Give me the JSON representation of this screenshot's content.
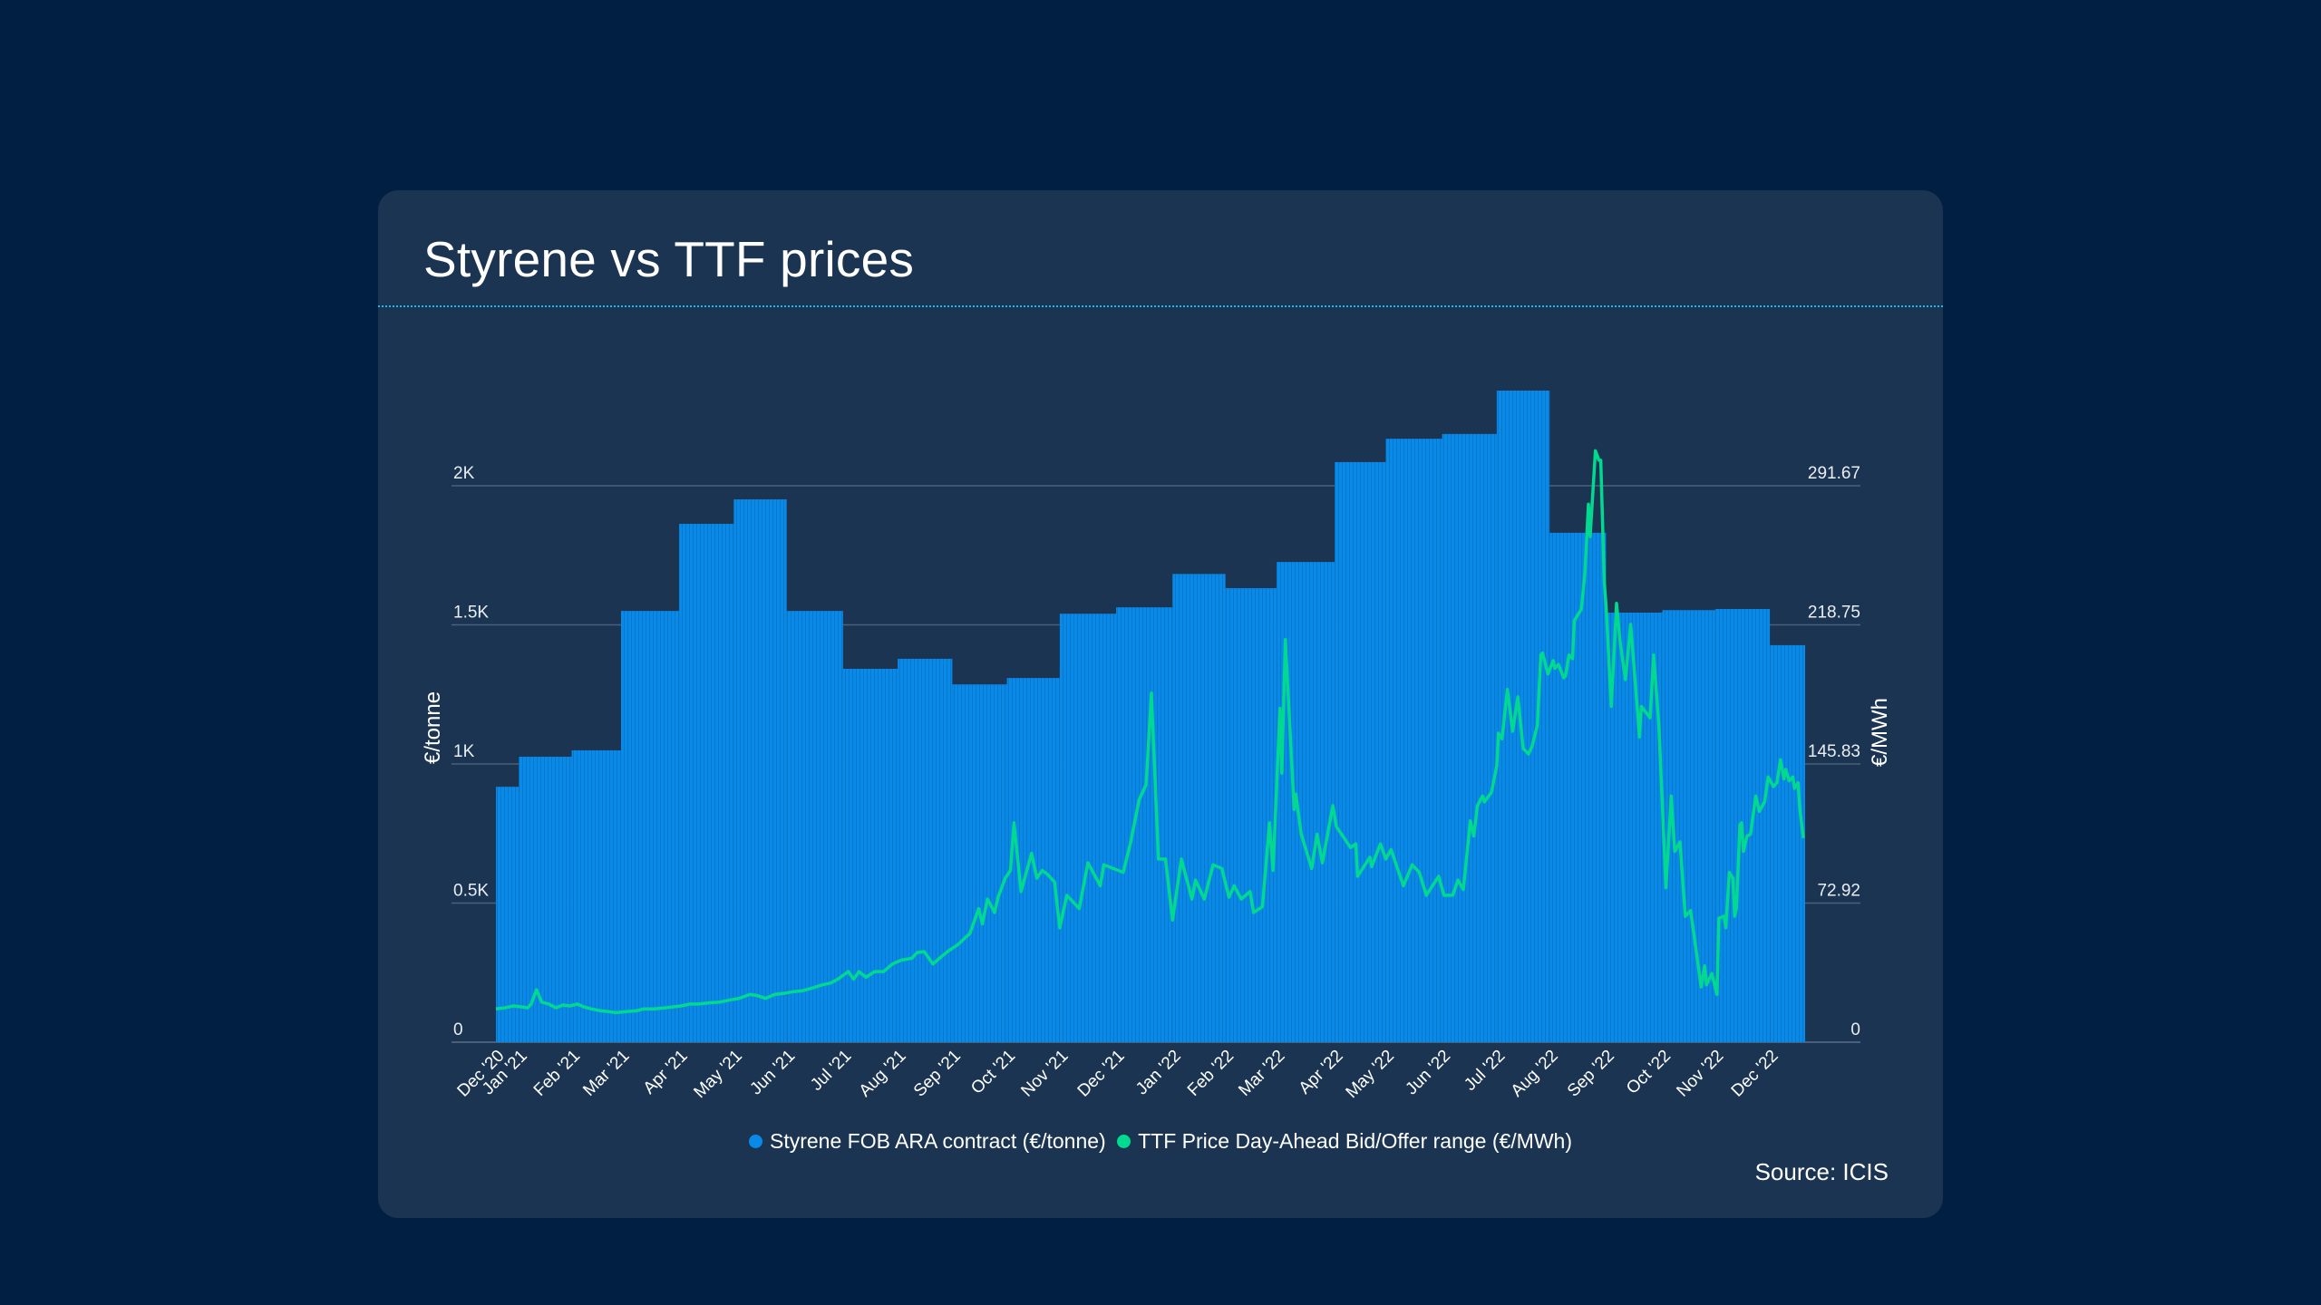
{
  "page": {
    "title": "Styrene vs TTF prices",
    "source": "Source: ICIS",
    "background_color": "#011f42",
    "card_color": "#1b3452",
    "divider_color": "#1fb8ea"
  },
  "chart_data": {
    "type": "bar",
    "title": "Styrene vs TTF prices",
    "xlabel": "",
    "ylabel": "€/tonne",
    "ylabel_right": "€/MWh",
    "x_start_date": "2020-12-18",
    "x_unit": "days since x_start_date",
    "x_range_days": [
      0,
      743
    ],
    "ylim": [
      0,
      2330
    ],
    "ylim_right": [
      0,
      339.8
    ],
    "grid": true,
    "legend_position": "bottom",
    "y_ticks": [
      {
        "value": 0,
        "label": "0"
      },
      {
        "value": 500,
        "label": "0.5K"
      },
      {
        "value": 1000,
        "label": "1K"
      },
      {
        "value": 1500,
        "label": "1.5K"
      },
      {
        "value": 2000,
        "label": "2K"
      }
    ],
    "y_ticks_right": [
      {
        "value": 0,
        "label": "0"
      },
      {
        "value": 72.92,
        "label": "72.92"
      },
      {
        "value": 145.83,
        "label": "145.83"
      },
      {
        "value": 218.75,
        "label": "218.75"
      },
      {
        "value": 291.67,
        "label": "291.67"
      }
    ],
    "categories": [
      "Dec '20",
      "Jan '21",
      "Feb '21",
      "Mar '21",
      "Apr '21",
      "May '21",
      "Jun '21",
      "Jul '21",
      "Aug '21",
      "Sep '21",
      "Oct '21",
      "Nov '21",
      "Dec '21",
      "Jan '22",
      "Feb '22",
      "Mar '22",
      "Apr '22",
      "May '22",
      "Jun '22",
      "Jul '22",
      "Aug '22",
      "Sep '22",
      "Oct '22",
      "Nov '22",
      "Dec '22"
    ],
    "series": [
      {
        "name": "Styrene FOB ARA contract (€/tonne)",
        "type": "bar",
        "axis": "left",
        "color": "#0a8ae8",
        "values": [
          918,
          1026,
          1049,
          1550,
          1863,
          1951,
          1550,
          1342,
          1378,
          1286,
          1309,
          1540,
          1563,
          1683,
          1632,
          1726,
          2085,
          2169,
          2186,
          2342,
          1831,
          1544,
          1553,
          1557,
          1427
        ],
        "period_days": [
          [
            0,
            13
          ],
          [
            13,
            43
          ],
          [
            43,
            71
          ],
          [
            71,
            104
          ],
          [
            104,
            135
          ],
          [
            135,
            165
          ],
          [
            165,
            197
          ],
          [
            197,
            228
          ],
          [
            228,
            259
          ],
          [
            259,
            290
          ],
          [
            290,
            320
          ],
          [
            320,
            352
          ],
          [
            352,
            384
          ],
          [
            384,
            414
          ],
          [
            414,
            443
          ],
          [
            443,
            476
          ],
          [
            476,
            505
          ],
          [
            505,
            537
          ],
          [
            537,
            568
          ],
          [
            568,
            598
          ],
          [
            598,
            630
          ],
          [
            630,
            662
          ],
          [
            662,
            692
          ],
          [
            692,
            723
          ],
          [
            723,
            743
          ]
        ]
      },
      {
        "name": "TTF Price Day-Ahead Bid/Offer range (€/MWh)",
        "type": "line",
        "axis": "right",
        "color": "#00d98f",
        "points": [
          [
            0,
            17.5
          ],
          [
            5,
            18
          ],
          [
            10,
            19
          ],
          [
            15,
            18.5
          ],
          [
            18,
            18
          ],
          [
            20,
            20
          ],
          [
            23,
            27.5
          ],
          [
            26,
            21
          ],
          [
            30,
            20
          ],
          [
            34,
            18
          ],
          [
            38,
            19.5
          ],
          [
            42,
            19
          ],
          [
            46,
            20
          ],
          [
            50,
            18.5
          ],
          [
            54,
            17.5
          ],
          [
            59,
            16.5
          ],
          [
            64,
            16
          ],
          [
            68,
            15.5
          ],
          [
            74,
            16
          ],
          [
            80,
            16.5
          ],
          [
            84,
            17.5
          ],
          [
            90,
            17.5
          ],
          [
            96,
            18
          ],
          [
            100,
            18.5
          ],
          [
            105,
            19
          ],
          [
            110,
            20
          ],
          [
            115,
            20
          ],
          [
            120,
            20.5
          ],
          [
            127,
            21
          ],
          [
            132,
            22
          ],
          [
            138,
            23
          ],
          [
            144,
            25
          ],
          [
            148,
            24.5
          ],
          [
            153,
            23
          ],
          [
            158,
            25
          ],
          [
            163,
            25.5
          ],
          [
            169,
            26.5
          ],
          [
            174,
            27
          ],
          [
            180,
            28.5
          ],
          [
            185,
            30
          ],
          [
            190,
            31
          ],
          [
            194,
            33
          ],
          [
            200,
            37
          ],
          [
            203,
            33
          ],
          [
            206,
            37
          ],
          [
            210,
            34
          ],
          [
            215,
            37
          ],
          [
            220,
            37
          ],
          [
            225,
            41
          ],
          [
            230,
            43
          ],
          [
            236,
            44
          ],
          [
            239,
            47
          ],
          [
            243,
            47.5
          ],
          [
            248,
            41
          ],
          [
            253,
            45
          ],
          [
            257,
            48
          ],
          [
            262,
            51
          ],
          [
            269,
            57
          ],
          [
            274,
            70
          ],
          [
            276,
            62
          ],
          [
            279,
            75
          ],
          [
            283,
            68
          ],
          [
            285,
            76
          ],
          [
            289,
            86
          ],
          [
            292,
            90
          ],
          [
            294,
            115
          ],
          [
            298,
            79
          ],
          [
            304,
            99
          ],
          [
            307,
            86
          ],
          [
            310,
            90
          ],
          [
            313,
            88
          ],
          [
            317,
            84
          ],
          [
            320,
            60
          ],
          [
            324,
            77
          ],
          [
            331,
            70
          ],
          [
            336,
            94
          ],
          [
            343,
            82
          ],
          [
            345,
            93
          ],
          [
            356,
            89
          ],
          [
            360,
            104
          ],
          [
            365,
            127
          ],
          [
            369,
            135
          ],
          [
            372,
            183
          ],
          [
            376,
            96
          ],
          [
            380,
            96
          ],
          [
            384,
            64
          ],
          [
            389,
            96
          ],
          [
            395,
            75
          ],
          [
            397,
            85
          ],
          [
            402,
            75
          ],
          [
            407,
            93
          ],
          [
            412,
            91
          ],
          [
            416,
            76
          ],
          [
            419,
            82
          ],
          [
            423,
            75
          ],
          [
            428,
            79
          ],
          [
            430,
            68
          ],
          [
            435,
            71
          ],
          [
            439,
            115
          ],
          [
            441,
            90
          ],
          [
            445,
            175
          ],
          [
            446,
            141
          ],
          [
            448,
            211
          ],
          [
            453,
            122
          ],
          [
            454,
            130
          ],
          [
            457,
            109
          ],
          [
            463,
            91
          ],
          [
            466,
            109
          ],
          [
            469,
            94
          ],
          [
            475,
            124
          ],
          [
            477,
            113
          ],
          [
            485,
            102
          ],
          [
            488,
            104
          ],
          [
            489,
            87
          ],
          [
            496,
            97
          ],
          [
            497,
            92
          ],
          [
            502,
            104
          ],
          [
            505,
            96
          ],
          [
            508,
            101
          ],
          [
            515,
            82
          ],
          [
            520,
            93
          ],
          [
            524,
            89
          ],
          [
            528,
            77
          ],
          [
            535,
            87
          ],
          [
            538,
            77
          ],
          [
            543,
            77
          ],
          [
            546,
            85
          ],
          [
            549,
            80
          ],
          [
            553,
            116
          ],
          [
            555,
            108
          ],
          [
            557,
            124
          ],
          [
            560,
            129
          ],
          [
            561,
            126
          ],
          [
            565,
            131
          ],
          [
            568,
            145
          ],
          [
            569,
            162
          ],
          [
            571,
            159
          ],
          [
            574,
            185
          ],
          [
            577,
            163
          ],
          [
            580,
            181
          ],
          [
            583,
            154
          ],
          [
            586,
            151
          ],
          [
            588,
            155
          ],
          [
            591,
            166
          ],
          [
            593,
            203
          ],
          [
            594,
            204
          ],
          [
            597,
            193
          ],
          [
            600,
            200
          ],
          [
            601,
            196
          ],
          [
            603,
            198
          ],
          [
            606,
            191
          ],
          [
            607,
            192
          ],
          [
            609,
            203
          ],
          [
            611,
            201
          ],
          [
            612,
            221
          ],
          [
            616,
            227
          ],
          [
            618,
            246
          ],
          [
            620,
            282
          ],
          [
            621,
            265
          ],
          [
            624,
            310
          ],
          [
            626,
            305
          ],
          [
            627,
            305
          ],
          [
            629,
            242
          ],
          [
            630,
            229
          ],
          [
            633,
            176
          ],
          [
            636,
            230
          ],
          [
            638,
            210
          ],
          [
            641,
            190
          ],
          [
            644,
            219
          ],
          [
            649,
            160
          ],
          [
            650,
            176
          ],
          [
            655,
            170
          ],
          [
            657,
            203
          ],
          [
            660,
            166
          ],
          [
            664,
            81
          ],
          [
            667,
            129
          ],
          [
            669,
            100
          ],
          [
            672,
            105
          ],
          [
            675,
            66
          ],
          [
            678,
            69
          ],
          [
            684,
            29
          ],
          [
            686,
            40
          ],
          [
            687,
            30
          ],
          [
            690,
            36
          ],
          [
            693,
            25
          ],
          [
            694,
            65
          ],
          [
            697,
            66
          ],
          [
            698,
            60
          ],
          [
            700,
            89
          ],
          [
            702,
            86
          ],
          [
            703,
            66
          ],
          [
            704,
            70
          ],
          [
            706,
            114
          ],
          [
            707,
            115
          ],
          [
            708,
            100
          ],
          [
            710,
            108
          ],
          [
            712,
            109
          ],
          [
            715,
            129
          ],
          [
            717,
            121
          ],
          [
            720,
            126
          ],
          [
            722,
            139
          ],
          [
            725,
            134
          ],
          [
            727,
            136
          ],
          [
            729,
            148
          ],
          [
            731,
            138
          ],
          [
            732,
            143
          ],
          [
            734,
            137
          ],
          [
            736,
            139
          ],
          [
            737,
            133
          ],
          [
            739,
            136
          ],
          [
            740,
            122
          ],
          [
            742,
            107
          ]
        ]
      }
    ],
    "legend": [
      {
        "label": "Styrene FOB ARA contract (€/tonne)",
        "color": "#0a8ae8"
      },
      {
        "label": "TTF Price Day-Ahead Bid/Offer range (€/MWh)",
        "color": "#00d98f"
      }
    ]
  }
}
